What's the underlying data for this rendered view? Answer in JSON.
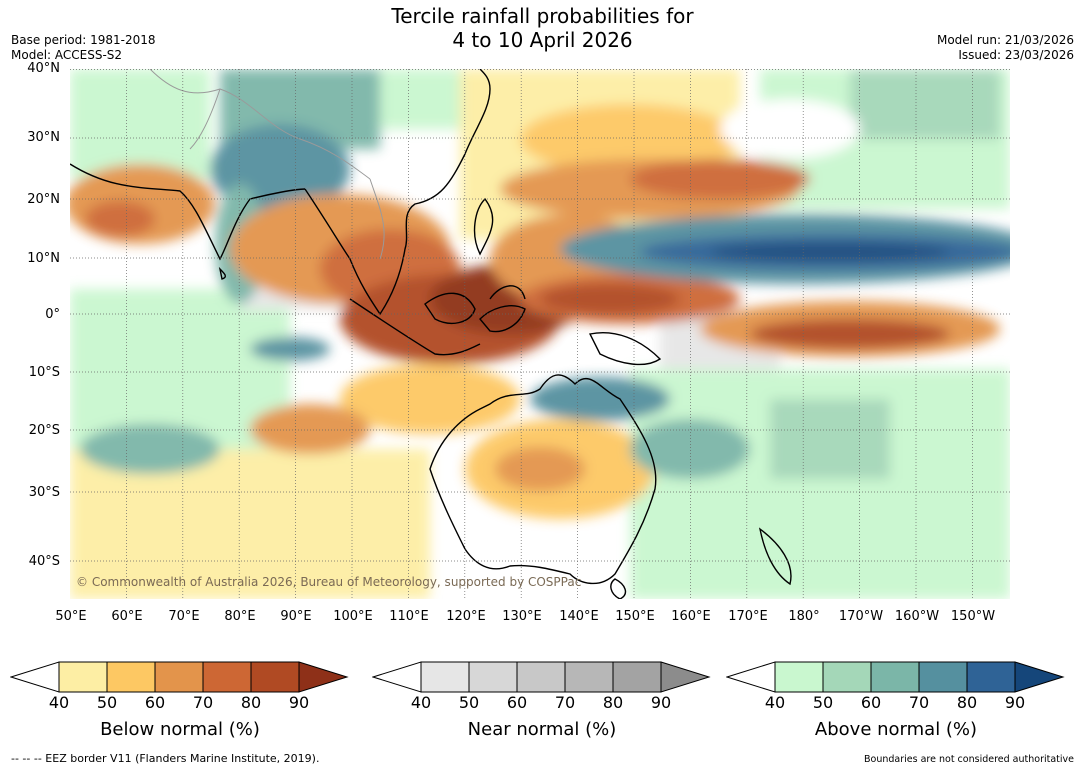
{
  "header": {
    "title_line1": "Tercile rainfall probabilities for",
    "title_line2": "4 to 10 April 2026",
    "base_period": "Base period: 1981-2018",
    "model": "Model: ACCESS-S2",
    "model_run": "Model run: 21/03/2026",
    "issued": "Issued: 23/03/2026"
  },
  "map": {
    "lat_labels": [
      "40°N",
      "30°N",
      "20°N",
      "10°N",
      "0°",
      "10°S",
      "20°S",
      "30°S",
      "40°S"
    ],
    "lon_labels": [
      "50°E",
      "60°E",
      "70°E",
      "80°E",
      "90°E",
      "100°E",
      "110°E",
      "120°E",
      "130°E",
      "140°E",
      "150°E",
      "160°E",
      "170°E",
      "180°",
      "170°W",
      "160°W",
      "150°W"
    ],
    "copyright": "© Commonwealth of Australia 2026, Bureau of Meteorology, supported by COSPPac"
  },
  "colorbars": [
    {
      "title": "Below normal (%)",
      "ticks": [
        "40",
        "50",
        "60",
        "70",
        "80",
        "90"
      ],
      "colors": [
        "#fdeea4",
        "#fdc863",
        "#e3944b",
        "#cd6734",
        "#b04a23",
        "#8e3018"
      ]
    },
    {
      "title": "Near normal (%)",
      "ticks": [
        "40",
        "50",
        "60",
        "70",
        "80",
        "90"
      ],
      "colors": [
        "#e6e6e6",
        "#d7d7d7",
        "#c8c8c8",
        "#b7b7b7",
        "#a3a3a3",
        "#8c8c8c"
      ]
    },
    {
      "title": "Above normal (%)",
      "ticks": [
        "40",
        "50",
        "60",
        "70",
        "80",
        "90"
      ],
      "colors": [
        "#c9f7cf",
        "#a4d7b8",
        "#7bb6a8",
        "#55909f",
        "#2f6396",
        "#15467a"
      ]
    }
  ],
  "footer": {
    "eez_note": "--  --  -- EEZ border V11 (Flanders Marine Institute, 2019).",
    "boundaries_note": "Boundaries are not considered authoritative"
  }
}
